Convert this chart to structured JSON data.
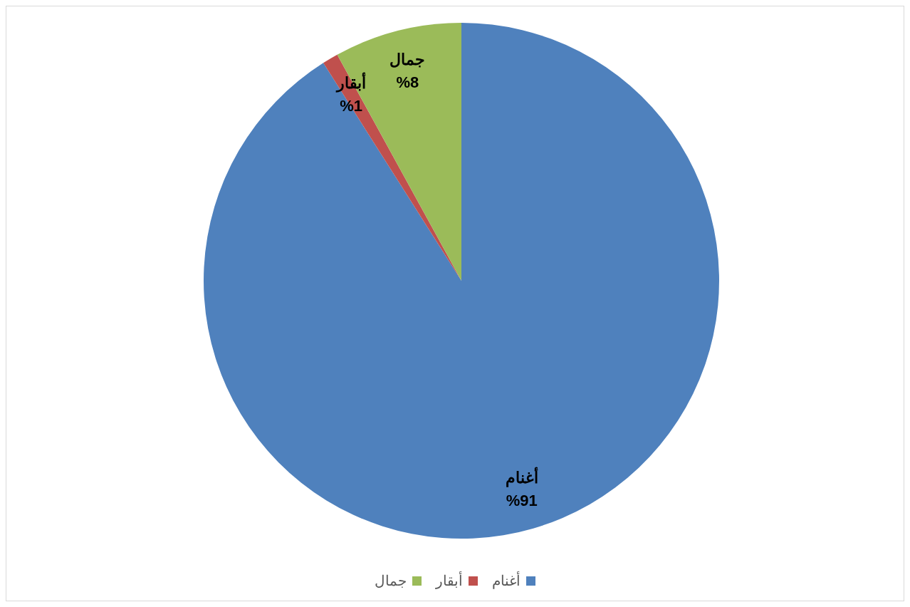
{
  "chart_data": {
    "type": "pie",
    "categories": [
      "أغنام",
      "أبقار",
      "جمال"
    ],
    "values": [
      91,
      1,
      8
    ],
    "colors": [
      "#4f81bd",
      "#c0504d",
      "#9bbb59"
    ],
    "value_labels": [
      "%91",
      "%1",
      "%8"
    ],
    "legend": "bottom"
  }
}
